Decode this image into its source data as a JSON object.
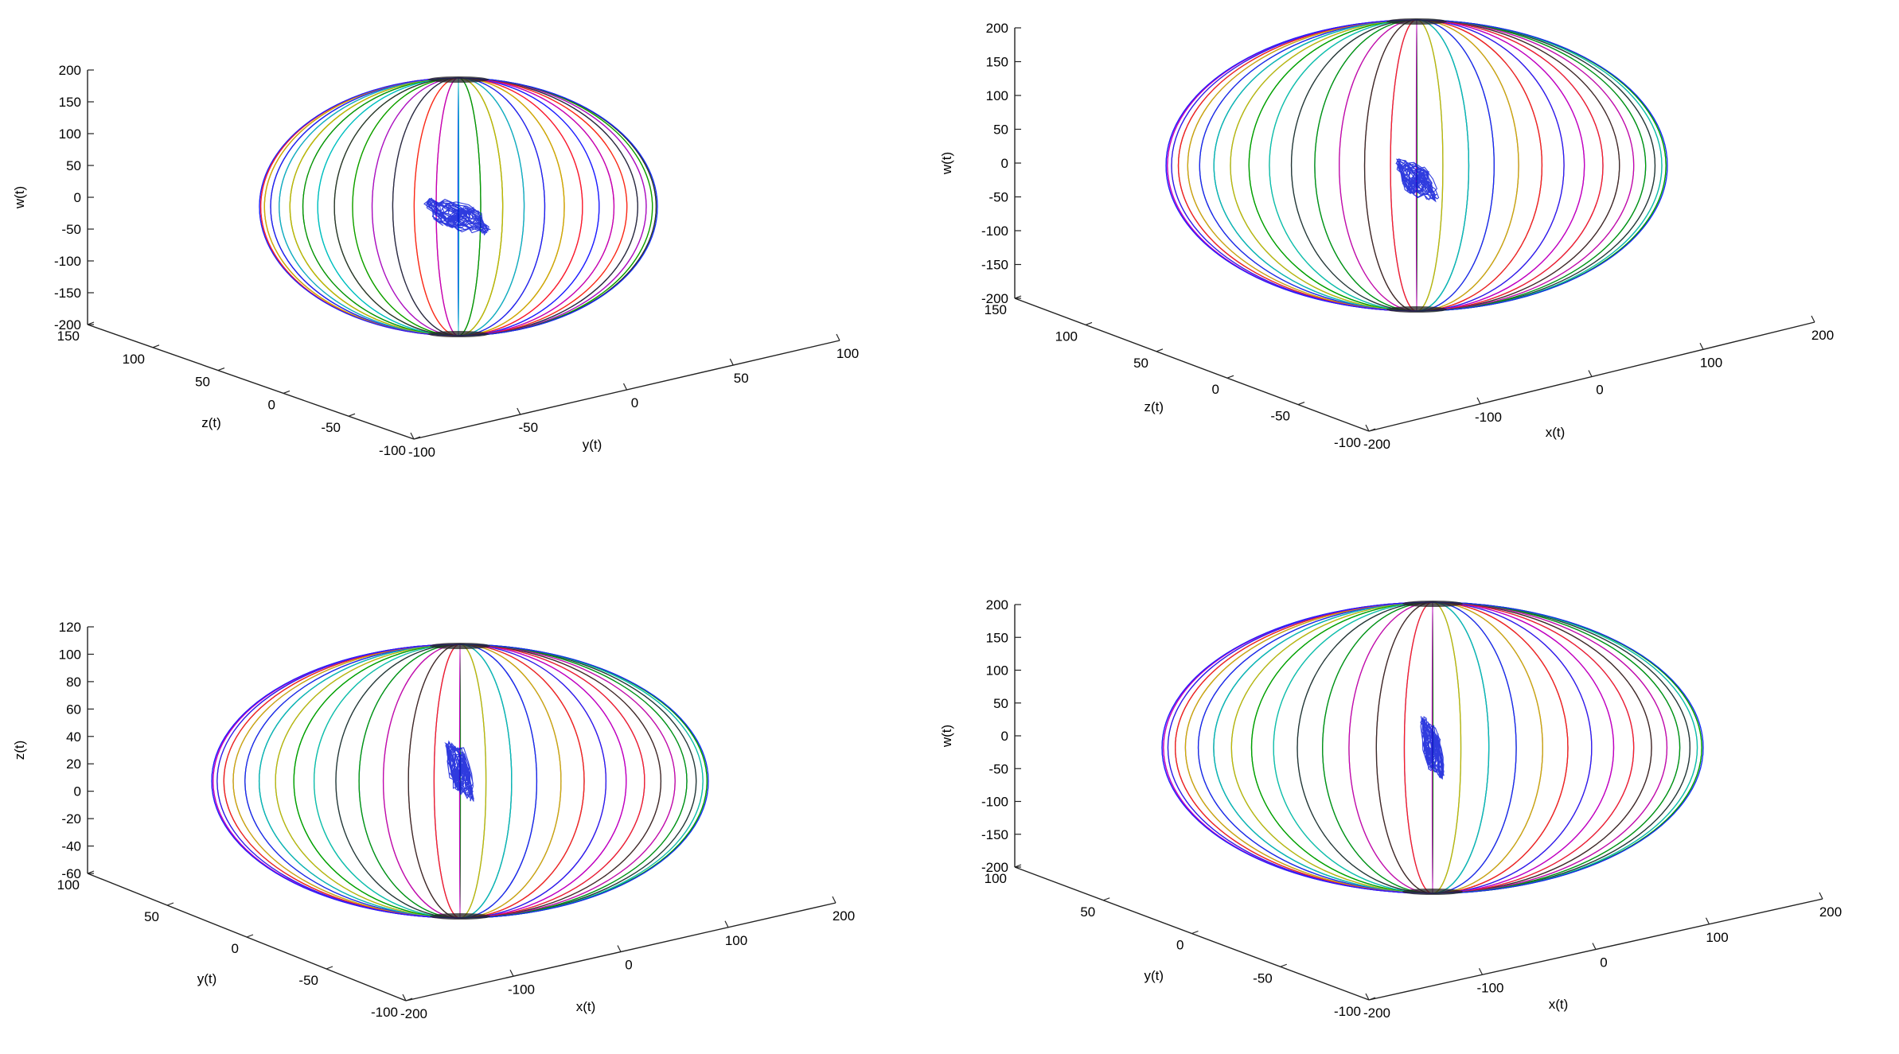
{
  "colors": {
    "meridians": [
      "#1f1fff",
      "#00a000",
      "#ff2020",
      "#00bfbf",
      "#c000c0",
      "#c8b400",
      "#303030"
    ],
    "trajectory": "#0b19d8",
    "axes": "#222222"
  },
  "chart_data": [
    {
      "type": "line",
      "title": "",
      "plot3d": true,
      "vertical": {
        "label": "w(t)",
        "range": [
          -200,
          200
        ],
        "ticks": [
          "-200",
          "-150",
          "-100",
          "-50",
          "0",
          "50",
          "100",
          "150",
          "200"
        ]
      },
      "left_axis": {
        "label": "z(t)",
        "range": [
          -100,
          150
        ],
        "ticks": [
          "150",
          "100",
          "50",
          "0",
          "-50",
          "-100"
        ]
      },
      "right_axis": {
        "label": "y(t)",
        "range": [
          -100,
          100
        ],
        "ticks": [
          "-100",
          "-50",
          "0",
          "50",
          "100"
        ]
      },
      "ellipsoid": {
        "meridians": 28
      },
      "trajectory": {
        "center": [
          0,
          -30
        ],
        "spread": [
          0.7,
          0.5
        ]
      }
    },
    {
      "type": "line",
      "title": "",
      "plot3d": true,
      "vertical": {
        "label": "w(t)",
        "range": [
          -200,
          200
        ],
        "ticks": [
          "-200",
          "-150",
          "-100",
          "-50",
          "0",
          "50",
          "100",
          "150",
          "200"
        ]
      },
      "left_axis": {
        "label": "z(t)",
        "range": [
          -100,
          150
        ],
        "ticks": [
          "150",
          "100",
          "50",
          "0",
          "-50",
          "-100"
        ]
      },
      "right_axis": {
        "label": "x(t)",
        "range": [
          -200,
          200
        ],
        "ticks": [
          "-200",
          "-100",
          "0",
          "100",
          "200"
        ]
      },
      "ellipsoid": {
        "meridians": 30
      },
      "trajectory": {
        "center": [
          0,
          -25
        ],
        "spread": [
          0.45,
          0.6
        ]
      }
    },
    {
      "type": "line",
      "title": "",
      "plot3d": true,
      "vertical": {
        "label": "z(t)",
        "range": [
          -60,
          120
        ],
        "ticks": [
          "-60",
          "-40",
          "-20",
          "0",
          "20",
          "40",
          "60",
          "80",
          "100",
          "120"
        ]
      },
      "left_axis": {
        "label": "y(t)",
        "range": [
          -100,
          100
        ],
        "ticks": [
          "100",
          "50",
          "0",
          "-50",
          "-100"
        ]
      },
      "right_axis": {
        "label": "x(t)",
        "range": [
          -200,
          200
        ],
        "ticks": [
          "-200",
          "-100",
          "0",
          "100",
          "200"
        ]
      },
      "ellipsoid": {
        "meridians": 30
      },
      "trajectory": {
        "center": [
          0,
          15
        ],
        "spread": [
          0.3,
          0.85
        ]
      }
    },
    {
      "type": "line",
      "title": "",
      "plot3d": true,
      "vertical": {
        "label": "w(t)",
        "range": [
          -200,
          200
        ],
        "ticks": [
          "-200",
          "-150",
          "-100",
          "-50",
          "0",
          "50",
          "100",
          "150",
          "200"
        ]
      },
      "left_axis": {
        "label": "y(t)",
        "range": [
          -100,
          100
        ],
        "ticks": [
          "100",
          "50",
          "0",
          "-50",
          "-100"
        ]
      },
      "right_axis": {
        "label": "x(t)",
        "range": [
          -200,
          200
        ],
        "ticks": [
          "-200",
          "-100",
          "0",
          "100",
          "200"
        ]
      },
      "ellipsoid": {
        "meridians": 30
      },
      "trajectory": {
        "center": [
          0,
          -20
        ],
        "spread": [
          0.25,
          0.9
        ]
      }
    }
  ]
}
